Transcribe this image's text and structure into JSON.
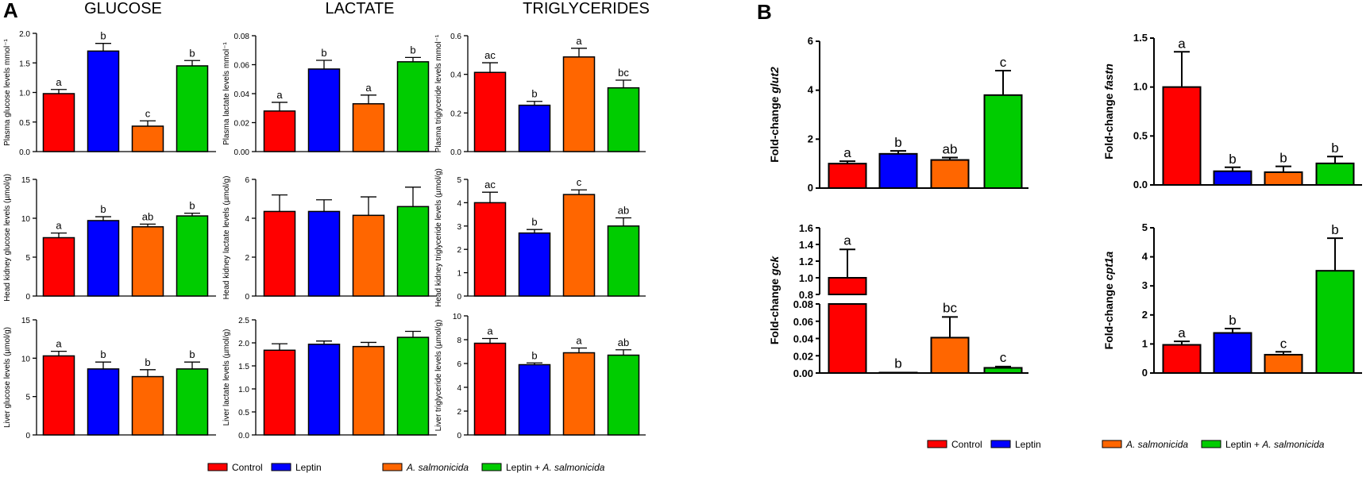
{
  "figure": {
    "panel_a": "A",
    "panel_b": "B",
    "column_titles": [
      "GLUCOSE",
      "LACTATE",
      "TRIGLYCERIDES"
    ]
  },
  "legend": {
    "entries": [
      {
        "label": "Control",
        "color": "#ff0000",
        "italic": false
      },
      {
        "label": "Leptin",
        "color": "#0000ff",
        "italic": false
      },
      {
        "label": "A. salmonicida",
        "color": "#ff6600",
        "italic": true
      },
      {
        "label": "Leptin + ",
        "label_italic": "A. salmonicida",
        "color": "#00cc00",
        "italic": false
      }
    ]
  },
  "chart_data": [
    {
      "id": "a1",
      "type": "bar",
      "ylabel": "Plasma glucose levels mmol⁻¹",
      "categories": [
        "Control",
        "Leptin",
        "A. salmonicida",
        "Leptin + A. salmonicida"
      ],
      "values": [
        0.98,
        1.7,
        0.43,
        1.45
      ],
      "errors": [
        0.07,
        0.13,
        0.09,
        0.09
      ],
      "letters": [
        "a",
        "b",
        "c",
        "b"
      ],
      "ylim": [
        0,
        2.0
      ],
      "ticks": [
        0.0,
        0.5,
        1.0,
        1.5,
        2.0
      ],
      "tick_labels": [
        "0.0",
        "0.5",
        "1.0",
        "1.5",
        "2.0"
      ]
    },
    {
      "id": "a2",
      "type": "bar",
      "ylabel": "Plasma lactate levels mmol⁻¹",
      "categories": [
        "Control",
        "Leptin",
        "A. salmonicida",
        "Leptin + A. salmonicida"
      ],
      "values": [
        0.028,
        0.057,
        0.033,
        0.062
      ],
      "errors": [
        0.006,
        0.006,
        0.006,
        0.003
      ],
      "letters": [
        "a",
        "b",
        "a",
        "b"
      ],
      "ylim": [
        0,
        0.08
      ],
      "ticks": [
        0,
        0.02,
        0.04,
        0.06,
        0.08
      ],
      "tick_labels": [
        "0.00",
        "0.02",
        "0.04",
        "0.06",
        "0.08"
      ]
    },
    {
      "id": "a3",
      "type": "bar",
      "ylabel": "Plasma triglyceride levels mmol⁻¹",
      "categories": [
        "Control",
        "Leptin",
        "A. salmonicida",
        "Leptin + A. salmonicida"
      ],
      "values": [
        0.41,
        0.24,
        0.49,
        0.33
      ],
      "errors": [
        0.05,
        0.02,
        0.045,
        0.04
      ],
      "letters": [
        "ac",
        "b",
        "a",
        "bc"
      ],
      "ylim": [
        0,
        0.6
      ],
      "ticks": [
        0,
        0.2,
        0.4,
        0.6
      ],
      "tick_labels": [
        "0.0",
        "0.2",
        "0.4",
        "0.6"
      ]
    },
    {
      "id": "a4",
      "type": "bar",
      "ylabel": "Head kidney glucose levels (µmol/g)",
      "categories": [
        "Control",
        "Leptin",
        "A. salmonicida",
        "Leptin + A. salmonicida"
      ],
      "values": [
        7.5,
        9.7,
        8.9,
        10.3
      ],
      "errors": [
        0.6,
        0.5,
        0.35,
        0.35
      ],
      "letters": [
        "a",
        "b",
        "ab",
        "b"
      ],
      "ylim": [
        0,
        15
      ],
      "ticks": [
        0,
        5,
        10,
        15
      ],
      "tick_labels": [
        "0",
        "5",
        "10",
        "15"
      ]
    },
    {
      "id": "a5",
      "type": "bar",
      "ylabel": "Head kidney lactate levels (µmol/g)",
      "categories": [
        "Control",
        "Leptin",
        "A. salmonicida",
        "Leptin + A. salmonicida"
      ],
      "values": [
        4.35,
        4.35,
        4.15,
        4.6
      ],
      "errors": [
        0.85,
        0.6,
        0.95,
        1.0
      ],
      "letters": [
        "",
        "",
        "",
        ""
      ],
      "ylim": [
        0,
        6
      ],
      "ticks": [
        0,
        2,
        4,
        6
      ],
      "tick_labels": [
        "0",
        "2",
        "4",
        "6"
      ]
    },
    {
      "id": "a6",
      "type": "bar",
      "ylabel": "Head kidney triglyceride levels (µmol/g)",
      "categories": [
        "Control",
        "Leptin",
        "A. salmonicida",
        "Leptin + A. salmonicida"
      ],
      "values": [
        4.0,
        2.7,
        4.35,
        3.0
      ],
      "errors": [
        0.45,
        0.15,
        0.2,
        0.35
      ],
      "letters": [
        "ac",
        "b",
        "c",
        "ab"
      ],
      "ylim": [
        0,
        5
      ],
      "ticks": [
        0,
        1,
        2,
        3,
        4,
        5
      ],
      "tick_labels": [
        "0",
        "1",
        "2",
        "3",
        "4",
        "5"
      ]
    },
    {
      "id": "a7",
      "type": "bar",
      "ylabel": "Liver glucose levels (µmol/g)",
      "categories": [
        "Control",
        "Leptin",
        "A. salmonicida",
        "Leptin + A. salmonicida"
      ],
      "values": [
        10.3,
        8.6,
        7.6,
        8.6
      ],
      "errors": [
        0.6,
        0.9,
        0.9,
        0.9
      ],
      "letters": [
        "a",
        "b",
        "b",
        "b"
      ],
      "ylim": [
        0,
        15
      ],
      "ticks": [
        0,
        5,
        10,
        15
      ],
      "tick_labels": [
        "0",
        "5",
        "10",
        "15"
      ]
    },
    {
      "id": "a8",
      "type": "bar",
      "ylabel": "Liver lactate levels (µmol/g)",
      "categories": [
        "Control",
        "Leptin",
        "A. salmonicida",
        "Leptin + A. salmonicida"
      ],
      "values": [
        1.84,
        1.97,
        1.92,
        2.12
      ],
      "errors": [
        0.14,
        0.07,
        0.09,
        0.13
      ],
      "letters": [
        "",
        "",
        "",
        ""
      ],
      "ylim": [
        0,
        2.5
      ],
      "ticks": [
        0,
        0.5,
        1.0,
        1.5,
        2.0,
        2.5
      ],
      "tick_labels": [
        "0.0",
        "0.5",
        "1.0",
        "1.5",
        "2.0",
        "2.5"
      ]
    },
    {
      "id": "a9",
      "type": "bar",
      "ylabel": "Liver triglyceride levels (µmol/g)",
      "categories": [
        "Control",
        "Leptin",
        "A. salmonicida",
        "Leptin + A. salmonicida"
      ],
      "values": [
        7.7,
        5.9,
        6.9,
        6.7
      ],
      "errors": [
        0.4,
        0.15,
        0.4,
        0.45
      ],
      "letters": [
        "a",
        "b",
        "a",
        "ab"
      ],
      "ylim": [
        0,
        10
      ],
      "ticks": [
        0,
        2,
        4,
        6,
        8,
        10
      ],
      "tick_labels": [
        "0",
        "2",
        "4",
        "6",
        "8",
        "10"
      ]
    },
    {
      "id": "b1",
      "type": "bar",
      "ylabel_prefix": "Fold-change ",
      "ylabel_gene": "glut2",
      "categories": [
        "Control",
        "Leptin",
        "A. salmonicida",
        "Leptin + A. salmonicida"
      ],
      "values": [
        1.0,
        1.4,
        1.15,
        3.8
      ],
      "errors": [
        0.1,
        0.12,
        0.1,
        1.0
      ],
      "letters": [
        "a",
        "b",
        "ab",
        "c"
      ],
      "ylim": [
        0,
        6
      ],
      "ticks": [
        0,
        2,
        4,
        6
      ],
      "tick_labels": [
        "0",
        "2",
        "4",
        "6"
      ]
    },
    {
      "id": "b2",
      "type": "bar",
      "ylabel_prefix": "Fold-change ",
      "ylabel_gene": "fastn",
      "categories": [
        "Control",
        "Leptin",
        "A. salmonicida",
        "Leptin + A. salmonicida"
      ],
      "values": [
        1.0,
        0.14,
        0.13,
        0.22
      ],
      "errors": [
        0.36,
        0.04,
        0.06,
        0.07
      ],
      "letters": [
        "a",
        "b",
        "b",
        "b"
      ],
      "ylim": [
        0,
        1.5
      ],
      "ticks": [
        0,
        0.5,
        1.0,
        1.5
      ],
      "tick_labels": [
        "0.0",
        "0.5",
        "1.0",
        "1.5"
      ]
    },
    {
      "id": "b3",
      "type": "bar",
      "ylabel_prefix": "Fold-change ",
      "ylabel_gene": "gck",
      "categories": [
        "Control",
        "Leptin",
        "A. salmonicida",
        "Leptin + A. salmonicida"
      ],
      "values": [
        1.0,
        0.0005,
        0.041,
        0.006
      ],
      "errors": [
        0.34,
        0.0,
        0.024,
        0.0015
      ],
      "letters": [
        "a",
        "b",
        "bc",
        "c"
      ],
      "broken_axis": true,
      "lower_ylim": [
        0,
        0.08
      ],
      "lower_ticks": [
        0,
        0.02,
        0.04,
        0.06,
        0.08
      ],
      "lower_tick_labels": [
        "0.00",
        "0.02",
        "0.04",
        "0.06",
        "0.08"
      ],
      "upper_ylim": [
        0.8,
        1.6
      ],
      "upper_ticks": [
        0.8,
        1.0,
        1.2,
        1.4,
        1.6
      ],
      "upper_tick_labels": [
        "0.8",
        "1.0",
        "1.2",
        "1.4",
        "1.6"
      ]
    },
    {
      "id": "b4",
      "type": "bar",
      "ylabel_prefix": "Fold-change ",
      "ylabel_gene": "cpt1a",
      "categories": [
        "Control",
        "Leptin",
        "A. salmonicida",
        "Leptin + A. salmonicida"
      ],
      "values": [
        0.97,
        1.38,
        0.63,
        3.52
      ],
      "errors": [
        0.12,
        0.15,
        0.1,
        1.12
      ],
      "letters": [
        "a",
        "b",
        "c",
        "b"
      ],
      "ylim": [
        0,
        5
      ],
      "ticks": [
        0,
        1,
        2,
        3,
        4,
        5
      ],
      "tick_labels": [
        "0",
        "1",
        "2",
        "3",
        "4",
        "5"
      ]
    }
  ]
}
